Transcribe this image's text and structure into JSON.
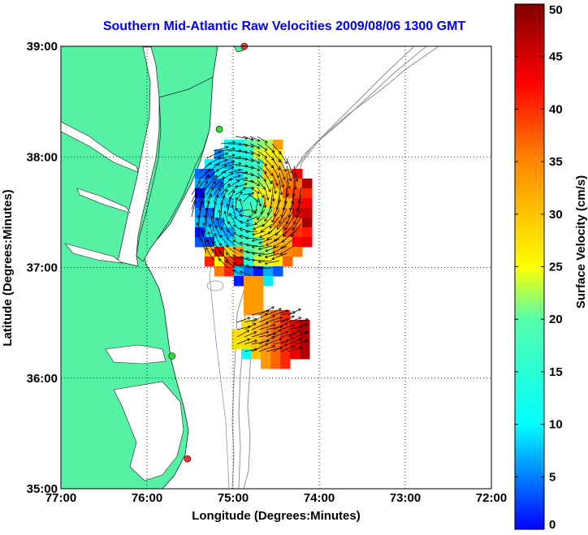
{
  "map": {
    "title": "Southern Mid-Atlantic Raw Velocities 2009/08/06 1300 GMT",
    "xlabel": "Longitude (Degrees:Minutes)",
    "ylabel": "Latitude (Degrees:Minutes)",
    "lon_ticks": [
      {
        "value": -77,
        "label": "77:00"
      },
      {
        "value": -76,
        "label": "76:00"
      },
      {
        "value": -75,
        "label": "75:00"
      },
      {
        "value": -74,
        "label": "74:00"
      },
      {
        "value": -73,
        "label": "73:00"
      },
      {
        "value": -72,
        "label": "72:00"
      }
    ],
    "lat_ticks": [
      {
        "value": 39,
        "label": "39:00"
      },
      {
        "value": 38,
        "label": "38:00"
      },
      {
        "value": 37,
        "label": "37:00"
      },
      {
        "value": 36,
        "label": "36:00"
      },
      {
        "value": 35,
        "label": "35:00"
      }
    ],
    "lon_range": [
      -77,
      -72
    ],
    "lat_range": [
      35,
      39
    ],
    "land_color": "#55f2a6",
    "grid": "dotted",
    "stations": [
      {
        "lon": -74.87,
        "lat": 39.0
      },
      {
        "lon": -75.16,
        "lat": 38.25
      },
      {
        "lon": -75.71,
        "lat": 36.2
      },
      {
        "lon": -75.53,
        "lat": 35.27
      }
    ]
  },
  "colorbar": {
    "label": "Surface Velocity (cm/s)",
    "min": 0,
    "max": 50,
    "ticks": [
      {
        "value": 0,
        "label": "0"
      },
      {
        "value": 5,
        "label": "5"
      },
      {
        "value": 10,
        "label": "10"
      },
      {
        "value": 15,
        "label": "15"
      },
      {
        "value": 20,
        "label": "20"
      },
      {
        "value": 25,
        "label": "25"
      },
      {
        "value": 30,
        "label": "30"
      },
      {
        "value": 35,
        "label": "35"
      },
      {
        "value": 40,
        "label": "40"
      },
      {
        "value": 45,
        "label": "45"
      },
      {
        "value": 50,
        "label": "50"
      }
    ]
  }
}
